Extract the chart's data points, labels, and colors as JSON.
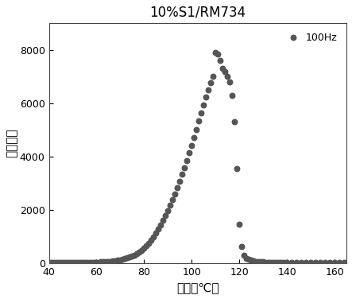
{
  "title": "10%S1/RM734",
  "xlabel": "温度（℃）",
  "ylabel": "介电常数",
  "legend_label": "100Hz",
  "dot_color": "#555555",
  "dot_size": 22,
  "xlim": [
    40,
    165
  ],
  "ylim": [
    0,
    9000
  ],
  "xticks": [
    40,
    60,
    80,
    100,
    120,
    140,
    160
  ],
  "yticks": [
    0,
    2000,
    4000,
    6000,
    8000
  ],
  "temperatures": [
    40,
    41,
    42,
    43,
    44,
    45,
    46,
    47,
    48,
    49,
    50,
    51,
    52,
    53,
    54,
    55,
    56,
    57,
    58,
    59,
    60,
    61,
    62,
    63,
    64,
    65,
    66,
    67,
    68,
    69,
    70,
    71,
    72,
    73,
    74,
    75,
    76,
    77,
    78,
    79,
    80,
    81,
    82,
    83,
    84,
    85,
    86,
    87,
    88,
    89,
    90,
    91,
    92,
    93,
    94,
    95,
    96,
    97,
    98,
    99,
    100,
    101,
    102,
    103,
    104,
    105,
    106,
    107,
    108,
    109,
    110,
    111,
    112,
    113,
    114,
    115,
    116,
    117,
    118,
    119,
    120,
    121,
    122,
    123,
    124,
    125,
    126,
    127,
    128,
    129,
    130,
    131,
    132,
    133,
    134,
    135,
    136,
    137,
    138,
    139,
    140,
    142,
    144,
    146,
    148,
    150,
    152,
    154,
    156,
    158,
    160,
    162,
    164
  ],
  "dielectric": [
    15,
    15,
    16,
    16,
    16,
    17,
    17,
    18,
    18,
    19,
    20,
    20,
    21,
    21,
    22,
    23,
    24,
    25,
    27,
    29,
    31,
    34,
    37,
    42,
    47,
    54,
    62,
    72,
    84,
    98,
    115,
    135,
    158,
    185,
    218,
    256,
    300,
    352,
    412,
    480,
    560,
    648,
    748,
    860,
    985,
    1120,
    1270,
    1430,
    1600,
    1780,
    1970,
    2170,
    2380,
    2600,
    2830,
    3070,
    3320,
    3580,
    3850,
    4130,
    4420,
    4720,
    5020,
    5330,
    5640,
    5940,
    6230,
    6510,
    6770,
    7010,
    7900,
    7850,
    7600,
    7300,
    7200,
    7000,
    6800,
    6300,
    5300,
    3550,
    1450,
    620,
    290,
    180,
    130,
    100,
    78,
    62,
    52,
    44,
    38,
    34,
    30,
    27,
    25,
    23,
    21,
    20,
    18,
    17,
    16,
    15,
    14,
    13,
    13,
    12,
    12,
    11,
    11,
    11,
    10,
    10,
    10
  ]
}
